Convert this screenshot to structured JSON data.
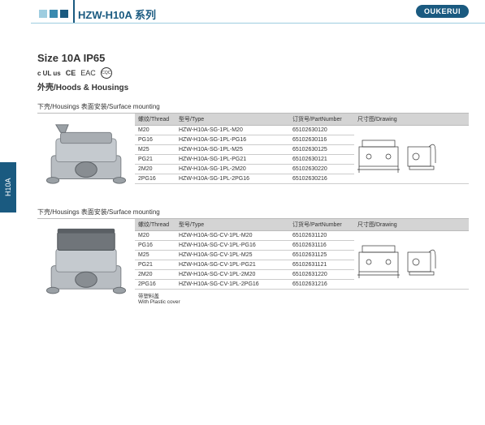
{
  "header": {
    "title": "HZW-H10A 系列",
    "brand": "OUKERUI"
  },
  "sideTab": "H10A",
  "overview": {
    "size": "Size 10A IP65",
    "certs": [
      "c UL us",
      "CE",
      "EAC",
      "CQC"
    ],
    "subtitle": "外壳/Hoods & Housings"
  },
  "columns": {
    "thread": "螺纹/Thread",
    "type": "型号/Type",
    "part": "订货号/PartNumber",
    "drawing": "尺寸图/Drawing"
  },
  "sections": [
    {
      "heading": "下壳/Housings  表面安装/Surface mounting",
      "footnote": "",
      "rows": [
        {
          "thread": "M20",
          "type": "HZW-H10A-SG-1PL-M20",
          "part": "65102630120"
        },
        {
          "thread": "PG16",
          "type": "HZW-H10A-SG-1PL-PG16",
          "part": "65102630116"
        },
        {
          "thread": "M25",
          "type": "HZW-H10A-SG-1PL-M25",
          "part": "65102630125"
        },
        {
          "thread": "PG21",
          "type": "HZW-H10A-SG-1PL-PG21",
          "part": "65102630121"
        },
        {
          "thread": "2M20",
          "type": "HZW-H10A-SG-1PL-2M20",
          "part": "65102630220"
        },
        {
          "thread": "2PG16",
          "type": "HZW-H10A-SG-1PL-2PG16",
          "part": "65102630216"
        }
      ]
    },
    {
      "heading": "下壳/Housings  表面安装/Surface mounting",
      "footnote": "带塑料盖\nWith Plastic cover",
      "rows": [
        {
          "thread": "M20",
          "type": "HZW-H10A-SG-CV-1PL-M20",
          "part": "65102631120"
        },
        {
          "thread": "PG16",
          "type": "HZW-H10A-SG-CV-1PL-PG16",
          "part": "65102631116"
        },
        {
          "thread": "M25",
          "type": "HZW-H10A-SG-CV-1PL-M25",
          "part": "65102631125"
        },
        {
          "thread": "PG21",
          "type": "HZW-H10A-SG-CV-1PL-PG21",
          "part": "65102631121"
        },
        {
          "thread": "2M20",
          "type": "HZW-H10A-SG-CV-1PL-2M20",
          "part": "65102631220"
        },
        {
          "thread": "2PG16",
          "type": "HZW-H10A-SG-CV-1PL-2PG16",
          "part": "65102631216"
        }
      ]
    }
  ],
  "style": {
    "brandBlue": "#1a5a80",
    "lightBlue": "#9ecde0",
    "headerGray": "#d4d4d4",
    "rowBorder": "#ccc"
  }
}
